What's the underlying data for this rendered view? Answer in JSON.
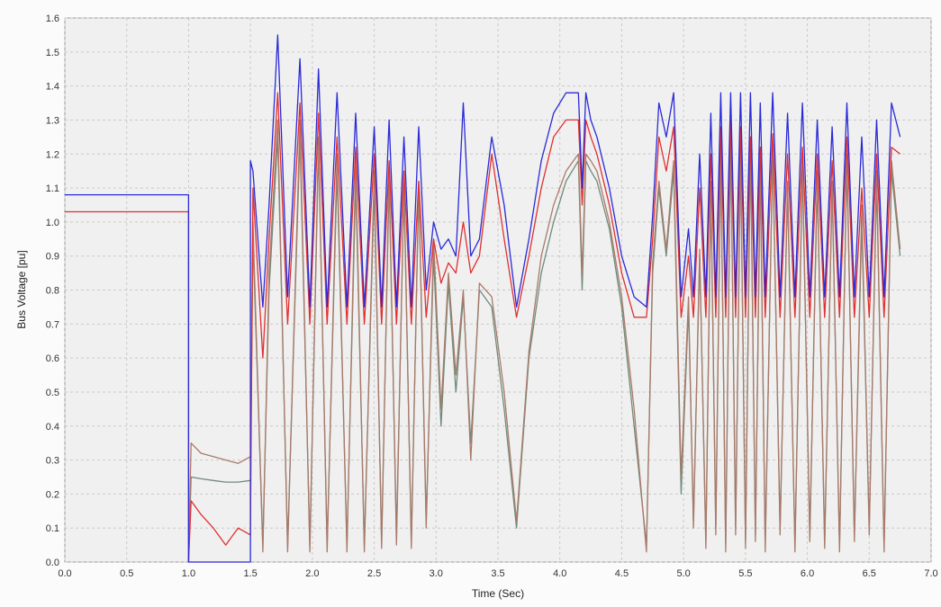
{
  "chart_data": {
    "type": "line",
    "title": "",
    "xlabel": "Time (Sec)",
    "ylabel": "Bus Voltage [pu]",
    "xlim": [
      0,
      7
    ],
    "ylim": [
      0,
      1.6
    ],
    "grid": true,
    "legend": "none",
    "xticks": [
      0,
      0.5,
      1,
      1.5,
      2,
      2.5,
      3,
      3.5,
      4,
      4.5,
      5,
      5.5,
      6,
      6.5,
      7
    ],
    "xtick_labels": [
      "0.0",
      "0.5",
      "1.0",
      "1.5",
      "2.0",
      "2.5",
      "3.0",
      "3.5",
      "4.0",
      "4.5",
      "5.0",
      "5.5",
      "6.0",
      "6.5",
      "7.0"
    ],
    "yticks": [
      0,
      0.1,
      0.2,
      0.3,
      0.4,
      0.5,
      0.6,
      0.7,
      0.8,
      0.9,
      1,
      1.1,
      1.2,
      1.3,
      1.4,
      1.5,
      1.6
    ],
    "ytick_labels": [
      "0.0",
      "0.1",
      "0.2",
      "0.3",
      "0.4",
      "0.5",
      "0.6",
      "0.7",
      "0.8",
      "0.9",
      "1.0",
      "1.1",
      "1.2",
      "1.3",
      "1.4",
      "1.5",
      "1.6"
    ],
    "series": [
      {
        "color": "#6e8b7a",
        "x": [
          1.0,
          1.02,
          1.1,
          1.2,
          1.3,
          1.4,
          1.5,
          1.52,
          1.6,
          1.65,
          1.72,
          1.8,
          1.9,
          1.98,
          2.05,
          2.12,
          2.2,
          2.28,
          2.35,
          2.42,
          2.5,
          2.56,
          2.62,
          2.68,
          2.74,
          2.8,
          2.86,
          2.92,
          2.98,
          3.04,
          3.1,
          3.16,
          3.22,
          3.28,
          3.35,
          3.45,
          3.55,
          3.65,
          3.75,
          3.85,
          3.95,
          4.05,
          4.15,
          4.18,
          4.21,
          4.25,
          4.3,
          4.4,
          4.5,
          4.6,
          4.7,
          4.75,
          4.8,
          4.86,
          4.92,
          4.98,
          5.04,
          5.08,
          5.13,
          5.18,
          5.22,
          5.26,
          5.3,
          5.34,
          5.38,
          5.42,
          5.46,
          5.5,
          5.54,
          5.58,
          5.62,
          5.66,
          5.72,
          5.78,
          5.84,
          5.9,
          5.96,
          6.02,
          6.08,
          6.14,
          6.2,
          6.26,
          6.32,
          6.38,
          6.44,
          6.5,
          6.56,
          6.62,
          6.68,
          6.75
        ],
        "values": [
          0.0,
          0.25,
          0.245,
          0.24,
          0.235,
          0.235,
          0.24,
          0.95,
          0.05,
          0.8,
          1.25,
          0.05,
          1.25,
          0.05,
          1.22,
          0.05,
          1.15,
          0.05,
          1.12,
          0.05,
          1.1,
          0.06,
          1.12,
          0.08,
          1.1,
          0.06,
          1.1,
          0.12,
          0.9,
          0.4,
          0.82,
          0.5,
          0.78,
          0.35,
          0.8,
          0.75,
          0.45,
          0.1,
          0.6,
          0.85,
          1.0,
          1.12,
          1.18,
          0.8,
          1.18,
          1.15,
          1.12,
          0.98,
          0.75,
          0.4,
          0.05,
          0.85,
          1.1,
          0.9,
          1.15,
          0.2,
          0.75,
          0.12,
          0.9,
          0.06,
          1.1,
          0.1,
          1.2,
          0.05,
          1.25,
          0.1,
          1.2,
          0.06,
          1.22,
          0.08,
          1.15,
          0.05,
          1.2,
          0.1,
          1.1,
          0.05,
          1.15,
          0.08,
          1.12,
          0.06,
          1.1,
          0.05,
          1.18,
          0.08,
          1.0,
          0.1,
          1.12,
          0.05,
          1.15,
          0.9
        ]
      },
      {
        "color": "#a97a6a",
        "x": [
          1.0,
          1.02,
          1.1,
          1.2,
          1.3,
          1.4,
          1.5,
          1.52,
          1.6,
          1.65,
          1.72,
          1.8,
          1.9,
          1.98,
          2.05,
          2.12,
          2.2,
          2.28,
          2.35,
          2.42,
          2.5,
          2.56,
          2.62,
          2.68,
          2.74,
          2.8,
          2.86,
          2.92,
          2.98,
          3.04,
          3.1,
          3.16,
          3.22,
          3.28,
          3.35,
          3.45,
          3.55,
          3.65,
          3.75,
          3.85,
          3.95,
          4.05,
          4.15,
          4.18,
          4.21,
          4.25,
          4.3,
          4.4,
          4.5,
          4.6,
          4.7,
          4.75,
          4.8,
          4.86,
          4.92,
          4.98,
          5.04,
          5.08,
          5.13,
          5.18,
          5.22,
          5.26,
          5.3,
          5.34,
          5.38,
          5.42,
          5.46,
          5.5,
          5.54,
          5.58,
          5.62,
          5.66,
          5.72,
          5.78,
          5.84,
          5.9,
          5.96,
          6.02,
          6.08,
          6.14,
          6.2,
          6.26,
          6.32,
          6.38,
          6.44,
          6.5,
          6.56,
          6.62,
          6.68,
          6.75
        ],
        "values": [
          0.0,
          0.35,
          0.32,
          0.31,
          0.3,
          0.29,
          0.31,
          1.0,
          0.03,
          0.85,
          1.3,
          0.03,
          1.3,
          0.03,
          1.25,
          0.03,
          1.2,
          0.03,
          1.18,
          0.03,
          1.15,
          0.04,
          1.15,
          0.05,
          1.12,
          0.04,
          1.12,
          0.1,
          0.95,
          0.45,
          0.85,
          0.55,
          0.8,
          0.3,
          0.82,
          0.78,
          0.5,
          0.12,
          0.62,
          0.9,
          1.05,
          1.15,
          1.2,
          0.85,
          1.2,
          1.18,
          1.15,
          1.0,
          0.78,
          0.45,
          0.03,
          0.88,
          1.12,
          0.92,
          1.18,
          0.25,
          0.78,
          0.1,
          0.92,
          0.04,
          1.12,
          0.08,
          1.22,
          0.03,
          1.28,
          0.08,
          1.22,
          0.04,
          1.25,
          0.06,
          1.18,
          0.03,
          1.22,
          0.08,
          1.12,
          0.03,
          1.18,
          0.06,
          1.15,
          0.04,
          1.12,
          0.03,
          1.2,
          0.06,
          1.05,
          0.08,
          1.15,
          0.03,
          1.18,
          0.92
        ]
      },
      {
        "color": "#e03030",
        "x": [
          0.0,
          1.0,
          1.0,
          1.02,
          1.1,
          1.2,
          1.3,
          1.4,
          1.5,
          1.52,
          1.6,
          1.65,
          1.72,
          1.8,
          1.9,
          1.98,
          2.05,
          2.12,
          2.2,
          2.28,
          2.35,
          2.42,
          2.5,
          2.56,
          2.62,
          2.68,
          2.74,
          2.8,
          2.86,
          2.92,
          2.98,
          3.04,
          3.1,
          3.16,
          3.22,
          3.28,
          3.35,
          3.45,
          3.55,
          3.65,
          3.75,
          3.85,
          3.95,
          4.05,
          4.15,
          4.18,
          4.21,
          4.25,
          4.3,
          4.4,
          4.5,
          4.6,
          4.7,
          4.75,
          4.8,
          4.86,
          4.92,
          4.98,
          5.04,
          5.08,
          5.13,
          5.18,
          5.22,
          5.26,
          5.3,
          5.34,
          5.38,
          5.42,
          5.46,
          5.5,
          5.54,
          5.58,
          5.62,
          5.66,
          5.72,
          5.78,
          5.84,
          5.9,
          5.96,
          6.02,
          6.08,
          6.14,
          6.2,
          6.26,
          6.32,
          6.38,
          6.44,
          6.5,
          6.56,
          6.62,
          6.68,
          6.75
        ],
        "values": [
          1.03,
          1.03,
          0.0,
          0.18,
          0.14,
          0.1,
          0.05,
          0.1,
          0.08,
          1.1,
          0.6,
          0.95,
          1.38,
          0.7,
          1.35,
          0.7,
          1.32,
          0.7,
          1.25,
          0.7,
          1.22,
          0.7,
          1.2,
          0.7,
          1.18,
          0.7,
          1.15,
          0.7,
          1.12,
          0.72,
          0.95,
          0.82,
          0.88,
          0.85,
          1.0,
          0.85,
          0.9,
          1.2,
          0.95,
          0.72,
          0.9,
          1.1,
          1.25,
          1.3,
          1.3,
          1.05,
          1.3,
          1.25,
          1.2,
          1.05,
          0.85,
          0.72,
          0.72,
          0.95,
          1.25,
          1.15,
          1.28,
          0.72,
          0.9,
          0.72,
          1.1,
          0.72,
          1.2,
          0.72,
          1.28,
          0.72,
          1.3,
          0.72,
          1.28,
          0.72,
          1.25,
          0.72,
          1.22,
          0.72,
          1.26,
          0.72,
          1.2,
          0.72,
          1.22,
          0.72,
          1.2,
          0.72,
          1.18,
          0.72,
          1.25,
          0.72,
          1.1,
          0.72,
          1.2,
          0.72,
          1.22,
          1.2
        ]
      },
      {
        "color": "#2a2ad8",
        "x": [
          0.0,
          1.0,
          1.0,
          1.5,
          1.5,
          1.52,
          1.6,
          1.65,
          1.72,
          1.8,
          1.9,
          1.98,
          2.05,
          2.12,
          2.2,
          2.28,
          2.35,
          2.42,
          2.5,
          2.56,
          2.62,
          2.68,
          2.74,
          2.8,
          2.86,
          2.92,
          2.98,
          3.04,
          3.1,
          3.16,
          3.22,
          3.28,
          3.35,
          3.45,
          3.55,
          3.65,
          3.75,
          3.85,
          3.95,
          4.05,
          4.15,
          4.18,
          4.21,
          4.25,
          4.3,
          4.4,
          4.5,
          4.6,
          4.7,
          4.75,
          4.8,
          4.86,
          4.92,
          4.98,
          5.04,
          5.08,
          5.13,
          5.18,
          5.22,
          5.26,
          5.3,
          5.34,
          5.38,
          5.42,
          5.46,
          5.5,
          5.54,
          5.58,
          5.62,
          5.66,
          5.72,
          5.78,
          5.84,
          5.9,
          5.96,
          6.02,
          6.08,
          6.14,
          6.2,
          6.26,
          6.32,
          6.38,
          6.44,
          6.5,
          6.56,
          6.62,
          6.68,
          6.75
        ],
        "values": [
          1.08,
          1.08,
          0.0,
          0.0,
          1.18,
          1.15,
          0.75,
          1.05,
          1.55,
          0.78,
          1.48,
          0.75,
          1.45,
          0.75,
          1.38,
          0.75,
          1.32,
          0.75,
          1.28,
          0.75,
          1.3,
          0.75,
          1.25,
          0.75,
          1.28,
          0.8,
          1.0,
          0.92,
          0.95,
          0.9,
          1.35,
          0.9,
          0.95,
          1.25,
          1.05,
          0.75,
          0.95,
          1.18,
          1.32,
          1.38,
          1.38,
          1.1,
          1.38,
          1.3,
          1.25,
          1.1,
          0.9,
          0.78,
          0.75,
          1.02,
          1.35,
          1.25,
          1.38,
          0.78,
          0.98,
          0.78,
          1.2,
          0.78,
          1.32,
          0.78,
          1.38,
          0.78,
          1.38,
          0.78,
          1.38,
          0.78,
          1.38,
          0.78,
          1.35,
          0.78,
          1.38,
          0.78,
          1.32,
          0.78,
          1.35,
          0.78,
          1.3,
          0.78,
          1.28,
          0.78,
          1.35,
          0.78,
          1.25,
          0.78,
          1.3,
          0.78,
          1.35,
          1.25
        ]
      }
    ]
  }
}
